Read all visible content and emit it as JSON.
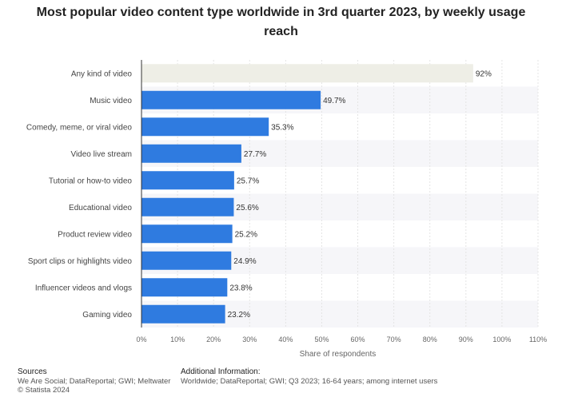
{
  "chart_data": {
    "type": "bar",
    "orientation": "horizontal",
    "title": "Most popular video content type worldwide in 3rd quarter 2023, by weekly usage reach",
    "xlabel": "Share of respondents",
    "ylabel": "",
    "xlim": [
      0,
      110
    ],
    "xticks": [
      "0%",
      "10%",
      "20%",
      "30%",
      "40%",
      "50%",
      "60%",
      "70%",
      "80%",
      "90%",
      "100%",
      "110%"
    ],
    "categories": [
      "Any kind of video",
      "Music video",
      "Comedy, meme, or viral video",
      "Video live stream",
      "Tutorial or how-to video",
      "Educational video",
      "Product review video",
      "Sport clips or highlights video",
      "Influencer videos and vlogs",
      "Gaming video"
    ],
    "values": [
      92,
      49.7,
      35.3,
      27.7,
      25.7,
      25.6,
      25.2,
      24.9,
      23.8,
      23.2
    ],
    "data_labels": [
      "92%",
      "49.7%",
      "35.3%",
      "27.7%",
      "25.7%",
      "25.6%",
      "25.2%",
      "24.9%",
      "23.8%",
      "23.2%"
    ],
    "grid": true,
    "colors": {
      "bar": "#2f7be0",
      "highlight_bar": "#eeeee6",
      "row_band": "#f6f6f9"
    }
  },
  "footer": {
    "sources_label": "Sources",
    "sources_text": "We Are Social; DataReportal; GWI; Meltwater",
    "copyright": "© Statista 2024",
    "additional_label": "Additional Information:",
    "additional_text": "Worldwide; DataReportal; GWI; Q3 2023; 16-64 years; among internet users"
  }
}
